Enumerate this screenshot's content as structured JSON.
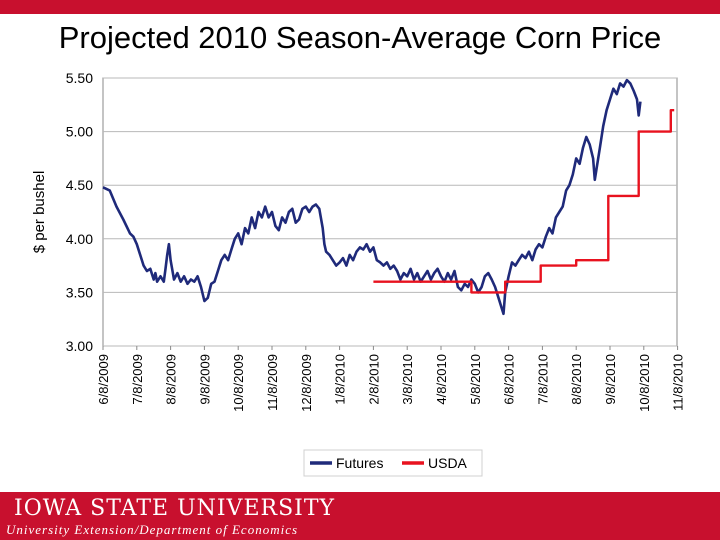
{
  "slide": {
    "title": "Projected 2010 Season-Average Corn Price",
    "footer_logo": "IOWA STATE UNIVERSITY",
    "footer_subtitle": "University Extension/Department of Economics",
    "accent_color": "#c8102e"
  },
  "chart_data": {
    "type": "line",
    "title": "Projected 2010 Season-Average Corn Price",
    "xlabel": "",
    "ylabel": "$ per bushel",
    "ylim": [
      3.0,
      5.5
    ],
    "yticks": [
      "5.50",
      "5.00",
      "4.50",
      "4.00",
      "3.50",
      "3.00"
    ],
    "xticks": [
      "6/8/2009",
      "7/8/2009",
      "8/8/2009",
      "9/8/2009",
      "10/8/2009",
      "11/8/2009",
      "12/8/2009",
      "1/8/2010",
      "2/8/2010",
      "3/8/2010",
      "4/8/2010",
      "5/8/2010",
      "6/8/2010",
      "7/8/2010",
      "8/8/2010",
      "9/8/2010",
      "10/8/2010",
      "11/8/2010"
    ],
    "grid": true,
    "legend_position": "bottom",
    "series": [
      {
        "name": "Futures",
        "color": "#1f2a7a",
        "points": [
          [
            0,
            4.48
          ],
          [
            0.2,
            4.45
          ],
          [
            0.4,
            4.3
          ],
          [
            0.6,
            4.18
          ],
          [
            0.8,
            4.05
          ],
          [
            0.9,
            4.02
          ],
          [
            1.0,
            3.95
          ],
          [
            1.1,
            3.85
          ],
          [
            1.2,
            3.75
          ],
          [
            1.3,
            3.7
          ],
          [
            1.4,
            3.72
          ],
          [
            1.5,
            3.62
          ],
          [
            1.55,
            3.68
          ],
          [
            1.6,
            3.6
          ],
          [
            1.7,
            3.65
          ],
          [
            1.8,
            3.6
          ],
          [
            1.85,
            3.72
          ],
          [
            1.9,
            3.85
          ],
          [
            1.95,
            3.95
          ],
          [
            2.0,
            3.8
          ],
          [
            2.1,
            3.62
          ],
          [
            2.2,
            3.68
          ],
          [
            2.3,
            3.6
          ],
          [
            2.4,
            3.65
          ],
          [
            2.5,
            3.58
          ],
          [
            2.6,
            3.62
          ],
          [
            2.7,
            3.6
          ],
          [
            2.8,
            3.65
          ],
          [
            2.9,
            3.55
          ],
          [
            3.0,
            3.42
          ],
          [
            3.1,
            3.45
          ],
          [
            3.2,
            3.58
          ],
          [
            3.3,
            3.6
          ],
          [
            3.4,
            3.7
          ],
          [
            3.5,
            3.8
          ],
          [
            3.6,
            3.85
          ],
          [
            3.7,
            3.8
          ],
          [
            3.8,
            3.9
          ],
          [
            3.9,
            4.0
          ],
          [
            4.0,
            4.05
          ],
          [
            4.1,
            3.95
          ],
          [
            4.2,
            4.1
          ],
          [
            4.3,
            4.05
          ],
          [
            4.4,
            4.2
          ],
          [
            4.5,
            4.1
          ],
          [
            4.6,
            4.25
          ],
          [
            4.7,
            4.2
          ],
          [
            4.8,
            4.3
          ],
          [
            4.9,
            4.2
          ],
          [
            5.0,
            4.25
          ],
          [
            5.1,
            4.12
          ],
          [
            5.2,
            4.08
          ],
          [
            5.3,
            4.2
          ],
          [
            5.4,
            4.15
          ],
          [
            5.5,
            4.25
          ],
          [
            5.6,
            4.28
          ],
          [
            5.7,
            4.15
          ],
          [
            5.8,
            4.18
          ],
          [
            5.9,
            4.28
          ],
          [
            6.0,
            4.3
          ],
          [
            6.1,
            4.25
          ],
          [
            6.2,
            4.3
          ],
          [
            6.3,
            4.32
          ],
          [
            6.4,
            4.28
          ],
          [
            6.5,
            4.1
          ],
          [
            6.55,
            3.95
          ],
          [
            6.6,
            3.88
          ],
          [
            6.7,
            3.85
          ],
          [
            6.8,
            3.8
          ],
          [
            6.9,
            3.75
          ],
          [
            7.0,
            3.78
          ],
          [
            7.1,
            3.82
          ],
          [
            7.2,
            3.75
          ],
          [
            7.3,
            3.85
          ],
          [
            7.4,
            3.8
          ],
          [
            7.5,
            3.88
          ],
          [
            7.6,
            3.92
          ],
          [
            7.7,
            3.9
          ],
          [
            7.8,
            3.95
          ],
          [
            7.9,
            3.88
          ],
          [
            8.0,
            3.92
          ],
          [
            8.1,
            3.8
          ],
          [
            8.2,
            3.78
          ],
          [
            8.3,
            3.75
          ],
          [
            8.4,
            3.78
          ],
          [
            8.5,
            3.72
          ],
          [
            8.6,
            3.75
          ],
          [
            8.7,
            3.7
          ],
          [
            8.8,
            3.62
          ],
          [
            8.9,
            3.68
          ],
          [
            9.0,
            3.65
          ],
          [
            9.1,
            3.72
          ],
          [
            9.2,
            3.62
          ],
          [
            9.3,
            3.68
          ],
          [
            9.4,
            3.6
          ],
          [
            9.5,
            3.65
          ],
          [
            9.6,
            3.7
          ],
          [
            9.7,
            3.62
          ],
          [
            9.8,
            3.68
          ],
          [
            9.9,
            3.72
          ],
          [
            10.0,
            3.65
          ],
          [
            10.1,
            3.6
          ],
          [
            10.2,
            3.68
          ],
          [
            10.3,
            3.62
          ],
          [
            10.4,
            3.7
          ],
          [
            10.5,
            3.55
          ],
          [
            10.6,
            3.52
          ],
          [
            10.7,
            3.58
          ],
          [
            10.8,
            3.55
          ],
          [
            10.9,
            3.62
          ],
          [
            11.0,
            3.58
          ],
          [
            11.1,
            3.5
          ],
          [
            11.2,
            3.55
          ],
          [
            11.3,
            3.65
          ],
          [
            11.4,
            3.68
          ],
          [
            11.5,
            3.62
          ],
          [
            11.6,
            3.55
          ],
          [
            11.7,
            3.45
          ],
          [
            11.8,
            3.35
          ],
          [
            11.85,
            3.3
          ],
          [
            11.9,
            3.5
          ],
          [
            12.0,
            3.65
          ],
          [
            12.1,
            3.78
          ],
          [
            12.2,
            3.75
          ],
          [
            12.3,
            3.8
          ],
          [
            12.4,
            3.85
          ],
          [
            12.5,
            3.82
          ],
          [
            12.6,
            3.88
          ],
          [
            12.7,
            3.8
          ],
          [
            12.8,
            3.9
          ],
          [
            12.9,
            3.95
          ],
          [
            13.0,
            3.92
          ],
          [
            13.1,
            4.02
          ],
          [
            13.2,
            4.1
          ],
          [
            13.3,
            4.05
          ],
          [
            13.4,
            4.2
          ],
          [
            13.5,
            4.25
          ],
          [
            13.6,
            4.3
          ],
          [
            13.7,
            4.45
          ],
          [
            13.8,
            4.5
          ],
          [
            13.9,
            4.6
          ],
          [
            14.0,
            4.75
          ],
          [
            14.1,
            4.7
          ],
          [
            14.2,
            4.85
          ],
          [
            14.3,
            4.95
          ],
          [
            14.4,
            4.88
          ],
          [
            14.5,
            4.75
          ],
          [
            14.55,
            4.55
          ],
          [
            14.6,
            4.65
          ],
          [
            14.7,
            4.85
          ],
          [
            14.8,
            5.05
          ],
          [
            14.9,
            5.2
          ],
          [
            15.0,
            5.3
          ],
          [
            15.1,
            5.4
          ],
          [
            15.2,
            5.35
          ],
          [
            15.3,
            5.45
          ],
          [
            15.4,
            5.42
          ],
          [
            15.5,
            5.48
          ],
          [
            15.6,
            5.45
          ],
          [
            15.7,
            5.38
          ],
          [
            15.8,
            5.3
          ],
          [
            15.85,
            5.15
          ],
          [
            15.9,
            5.28
          ]
        ]
      },
      {
        "name": "USDA",
        "color": "#e8121f",
        "points": [
          [
            8.0,
            3.6
          ],
          [
            10.9,
            3.6
          ],
          [
            10.9,
            3.5
          ],
          [
            11.9,
            3.5
          ],
          [
            11.9,
            3.6
          ],
          [
            12.95,
            3.6
          ],
          [
            12.95,
            3.75
          ],
          [
            14.0,
            3.75
          ],
          [
            14.0,
            3.8
          ],
          [
            14.95,
            3.8
          ],
          [
            14.95,
            4.4
          ],
          [
            15.85,
            4.4
          ],
          [
            15.85,
            5.0
          ],
          [
            16.8,
            5.0
          ],
          [
            16.8,
            5.2
          ],
          [
            16.9,
            5.2
          ]
        ]
      }
    ]
  }
}
